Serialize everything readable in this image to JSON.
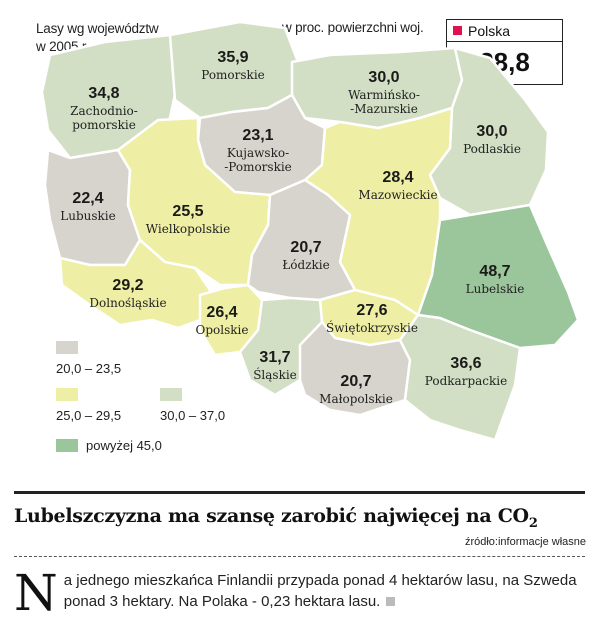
{
  "map": {
    "title_line1": "Lasy wg województw",
    "title_line2": "w 2005 r.",
    "unit_label": "w proc. powierzchni woj.",
    "national": {
      "label": "Polska",
      "value": "28,8",
      "swatch_color": "#e0114f"
    }
  },
  "regions": [
    {
      "name": "Zachodniopomorskie",
      "name_lines": [
        "Zachodnio-",
        "pomorskie"
      ],
      "value": "34,8",
      "category": "c30_37"
    },
    {
      "name": "Pomorskie",
      "name_lines": [
        "Pomorskie"
      ],
      "value": "35,9",
      "category": "c30_37"
    },
    {
      "name": "Warmińsko-Mazurskie",
      "name_lines": [
        "Warmińsko-",
        "-Mazurskie"
      ],
      "value": "30,0",
      "category": "c30_37"
    },
    {
      "name": "Podlaskie",
      "name_lines": [
        "Podlaskie"
      ],
      "value": "30,0",
      "category": "c30_37"
    },
    {
      "name": "Kujawsko-Pomorskie",
      "name_lines": [
        "Kujawsko-",
        "-Pomorskie"
      ],
      "value": "23,1",
      "category": "c20_23"
    },
    {
      "name": "Lubuskie",
      "name_lines": [
        "Lubuskie"
      ],
      "value": "22,4",
      "category": "c20_23"
    },
    {
      "name": "Wielkopolskie",
      "name_lines": [
        "Wielkopolskie"
      ],
      "value": "25,5",
      "category": "c25_29"
    },
    {
      "name": "Mazowieckie",
      "name_lines": [
        "Mazowieckie"
      ],
      "value": "28,4",
      "category": "c25_29"
    },
    {
      "name": "Łódzkie",
      "name_lines": [
        "Łódzkie"
      ],
      "value": "20,7",
      "category": "c20_23"
    },
    {
      "name": "Lubelskie",
      "name_lines": [
        "Lubelskie"
      ],
      "value": "48,7",
      "category": "c45"
    },
    {
      "name": "Dolnośląskie",
      "name_lines": [
        "Dolnośląskie"
      ],
      "value": "29,2",
      "category": "c25_29"
    },
    {
      "name": "Opolskie",
      "name_lines": [
        "Opolskie"
      ],
      "value": "26,4",
      "category": "c25_29"
    },
    {
      "name": "Świętokrzyskie",
      "name_lines": [
        "Świętokrzyskie"
      ],
      "value": "27,6",
      "category": "c25_29"
    },
    {
      "name": "Śląskie",
      "name_lines": [
        "Śląskie"
      ],
      "value": "31,7",
      "category": "c30_37"
    },
    {
      "name": "Małopolskie",
      "name_lines": [
        "Małopolskie"
      ],
      "value": "20,7",
      "category": "c20_23"
    },
    {
      "name": "Podkarpackie",
      "name_lines": [
        "Podkarpackie"
      ],
      "value": "36,6",
      "category": "c30_37"
    }
  ],
  "legend": [
    {
      "id": "c20_23",
      "label": "20,0 – 23,5",
      "color": "#d6d4cc"
    },
    {
      "id": "c25_29",
      "label": "25,0 – 29,5",
      "color": "#eeeea4"
    },
    {
      "id": "c30_37",
      "label": "30,0 – 37,0",
      "color": "#d2dfc4"
    },
    {
      "id": "c45",
      "label": "powyżej 45,0",
      "color": "#9bc59a"
    }
  ],
  "article": {
    "headline": "Lubelszczyzna ma szansę zarobić najwięcej na CO",
    "headline_sub": "2",
    "source": "źródło:informacje własne",
    "dropcap": "N",
    "body": "a jednego mieszkańca Finlandii przypada ponad 4 hektarów lasu, na Szweda ponad 3 hektary. Na Polaka - 0,23 hektara lasu."
  }
}
